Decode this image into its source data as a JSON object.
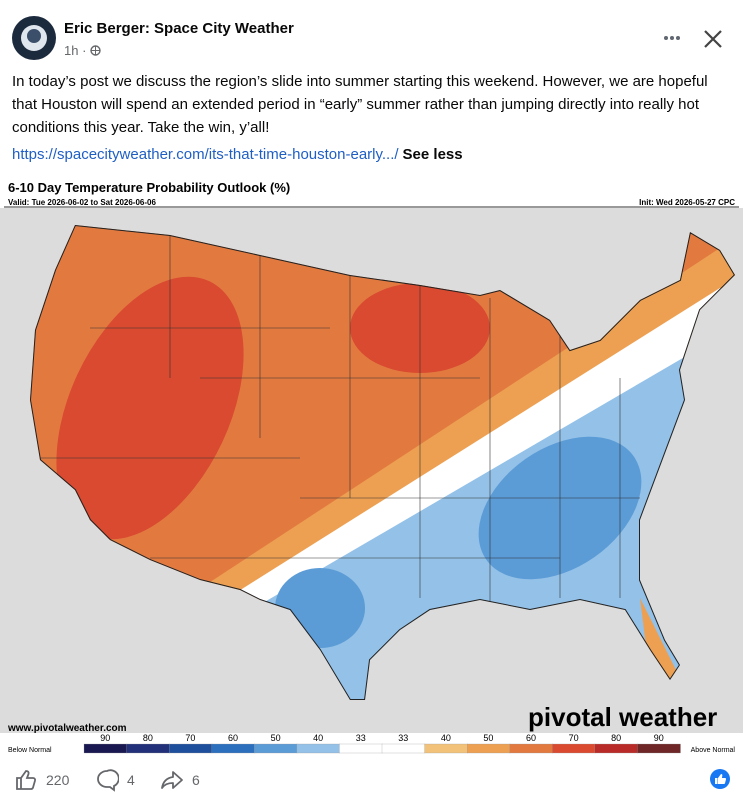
{
  "post": {
    "author": "Eric Berger: Space City Weather",
    "time": "1h",
    "body": "In today’s post we discuss the region’s slide into summer starting this weekend. However, we are hopeful that Houston will spend an extended period in “early” summer rather than jumping directly into really hot conditions this year. Take the win, y’all!",
    "link": "https://spacecityweather.com/its-that-time-houston-early.../",
    "see_less": "See less"
  },
  "map": {
    "title": "6-10 Day Temperature Probability Outlook (%)",
    "valid": "Valid: Tue 2026-06-02 to Sat 2026-06-06",
    "init": "Init: Wed 2026-05-27 CPC",
    "source": "www.pivotalweather.com",
    "logo": "pivotal weather",
    "legend": {
      "below": "Below Normal",
      "above": "Above Normal",
      "labels": [
        "90",
        "80",
        "70",
        "60",
        "50",
        "40",
        "33",
        "33",
        "40",
        "50",
        "60",
        "70",
        "80",
        "90"
      ],
      "colors": [
        "#1a1850",
        "#22307a",
        "#1d4f9c",
        "#2c6fbd",
        "#5b9bd6",
        "#93c1e8",
        "#ffffff",
        "#ffffff",
        "#f3c27a",
        "#eda052",
        "#e27a40",
        "#d94a30",
        "#b82b28",
        "#6e2626"
      ]
    }
  },
  "reactions": {
    "likes": "220",
    "comments": "4",
    "shares": "6"
  }
}
